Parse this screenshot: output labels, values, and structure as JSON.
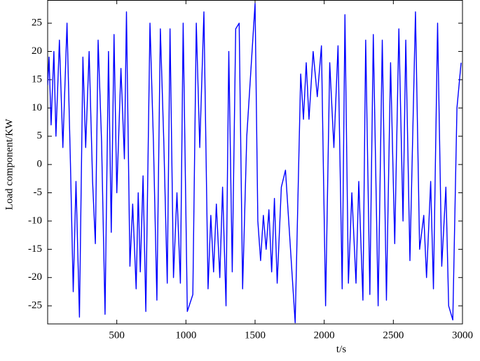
{
  "chart_data": {
    "type": "line",
    "xlabel": "t/s",
    "ylabel": "Load component/KW",
    "xlim": [
      0,
      3000
    ],
    "xticks": [
      500,
      1000,
      1500,
      2000,
      2500,
      3000
    ],
    "ylim": [
      -28.2,
      29.1
    ],
    "yticks": [
      -25,
      -20,
      -15,
      -10,
      -5,
      0,
      5,
      10,
      15,
      20,
      25
    ],
    "grid": false,
    "x": [
      0,
      10,
      25,
      45,
      60,
      85,
      110,
      140,
      165,
      185,
      205,
      230,
      255,
      275,
      300,
      325,
      345,
      365,
      390,
      415,
      440,
      460,
      480,
      500,
      530,
      555,
      570,
      595,
      615,
      640,
      655,
      670,
      690,
      710,
      740,
      765,
      790,
      815,
      840,
      865,
      885,
      910,
      935,
      960,
      980,
      1010,
      1050,
      1075,
      1100,
      1130,
      1160,
      1180,
      1200,
      1220,
      1245,
      1265,
      1290,
      1310,
      1335,
      1360,
      1385,
      1410,
      1440,
      1500,
      1520,
      1540,
      1560,
      1580,
      1600,
      1620,
      1640,
      1660,
      1690,
      1720,
      1790,
      1830,
      1850,
      1870,
      1890,
      1920,
      1950,
      1980,
      2010,
      2040,
      2070,
      2100,
      2130,
      2150,
      2175,
      2200,
      2230,
      2250,
      2280,
      2300,
      2330,
      2355,
      2390,
      2420,
      2450,
      2480,
      2510,
      2540,
      2570,
      2590,
      2620,
      2660,
      2690,
      2720,
      2740,
      2770,
      2790,
      2820,
      2850,
      2880,
      2900,
      2930,
      2960,
      2990
    ],
    "series": [
      {
        "color": "#0000ff",
        "values": [
          14,
          19,
          7,
          20,
          5,
          22,
          3,
          25,
          0,
          -22.5,
          -3,
          -27,
          19,
          3,
          20,
          -3,
          -14,
          22,
          4,
          -26.5,
          20,
          -12,
          23,
          -5,
          17,
          1,
          27,
          -18,
          -7,
          -22,
          -5,
          -19,
          -2,
          -26,
          25,
          4,
          -24,
          24,
          4,
          -21,
          24,
          -20,
          -5,
          -21,
          25,
          -26,
          -23,
          25,
          3,
          27,
          -22,
          -9,
          -19,
          -7,
          -20,
          -4,
          -25,
          20,
          -19,
          24,
          25,
          -22,
          5,
          28.5,
          -10,
          -17,
          -9,
          -15,
          -8,
          -19,
          -6,
          -21,
          -4,
          -1,
          -28,
          16,
          8,
          18,
          8,
          20,
          12,
          21,
          -25,
          18,
          3,
          21,
          -22,
          26.5,
          -21,
          -5,
          -21,
          -3,
          -24,
          22,
          -23,
          23,
          -25,
          22,
          -24,
          18,
          -14,
          24,
          -10,
          22,
          -17,
          27,
          -15,
          -9,
          -20,
          -3,
          -22,
          25,
          -18,
          -4,
          -25,
          -27.5,
          10,
          18
        ]
      }
    ]
  }
}
